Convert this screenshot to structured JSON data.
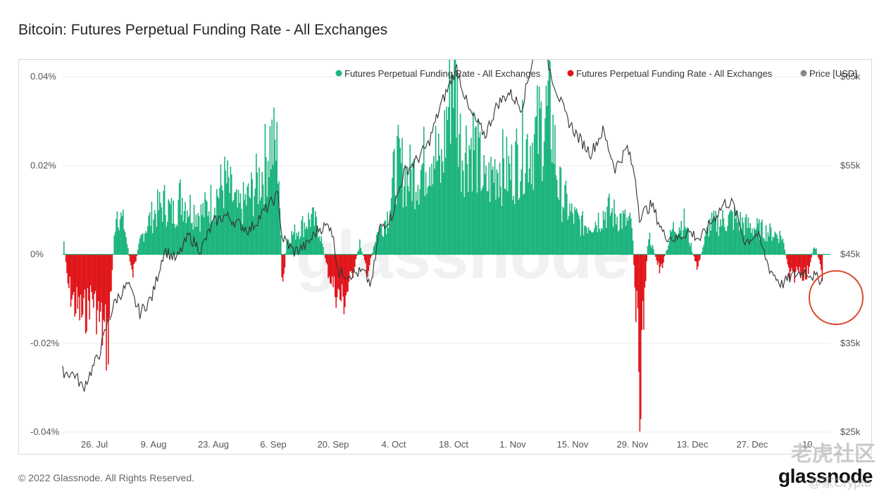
{
  "title": "Bitcoin: Futures Perpetual Funding Rate - All Exchanges",
  "footer": "© 2022 Glassnode. All Rights Reserved.",
  "brand": "glassnode",
  "background_watermark": "glassnode",
  "overlay_watermark": {
    "text": "老虎社区",
    "sub": "@家Crypto"
  },
  "colors": {
    "positive": "#1fb57f",
    "negative": "#e0161b",
    "price": "#333333",
    "highlight_circle": "#d9472b",
    "grid": "#ebebeb"
  },
  "chart_data": {
    "type": "bar",
    "grid": true,
    "legend_position": "top-right",
    "left_axis": {
      "ticks": [
        "0.04%",
        "0.02%",
        "0%",
        "-0.02%",
        "-0.04%"
      ],
      "range": [
        -0.04,
        0.04
      ],
      "unit": "%"
    },
    "right_axis": {
      "ticks": [
        "$65k",
        "$55k",
        "$45k",
        "$35k",
        "$25k"
      ],
      "range": [
        25000,
        65000
      ]
    },
    "x_ticks": [
      "26. Jul",
      "9. Aug",
      "23. Aug",
      "6. Sep",
      "20. Sep",
      "4. Oct",
      "18. Oct",
      "1. Nov",
      "15. Nov",
      "29. Nov",
      "13. Dec",
      "27. Dec",
      "10."
    ],
    "x_range": [
      "2021-07-15",
      "2022-01-20"
    ],
    "series": [
      {
        "name": "Futures Perpetual Funding Rate - All Exchanges",
        "color": "#1fb57f",
        "kind": "positive bars"
      },
      {
        "name": "Futures Perpetual Funding Rate - All Exchanges",
        "color": "#e0161b",
        "kind": "negative bars"
      },
      {
        "name": "Price [USD]",
        "color": "#888888",
        "kind": "line"
      }
    ],
    "funding_rate_points": [
      [
        "2021-07-15",
        0.006
      ],
      [
        "2021-07-16",
        -0.008
      ],
      [
        "2021-07-18",
        -0.014
      ],
      [
        "2021-07-20",
        -0.017
      ],
      [
        "2021-07-22",
        -0.011
      ],
      [
        "2021-07-24",
        -0.018
      ],
      [
        "2021-07-26",
        -0.024
      ],
      [
        "2021-07-27",
        -0.006
      ],
      [
        "2021-07-28",
        0.013
      ],
      [
        "2021-07-30",
        0.008
      ],
      [
        "2021-08-01",
        -0.006
      ],
      [
        "2021-08-03",
        0.004
      ],
      [
        "2021-08-05",
        0.009
      ],
      [
        "2021-08-07",
        0.012
      ],
      [
        "2021-08-09",
        0.014
      ],
      [
        "2021-08-11",
        0.011
      ],
      [
        "2021-08-13",
        0.016
      ],
      [
        "2021-08-15",
        0.013
      ],
      [
        "2021-08-18",
        0.011
      ],
      [
        "2021-08-21",
        0.015
      ],
      [
        "2021-08-24",
        0.02
      ],
      [
        "2021-08-27",
        0.012
      ],
      [
        "2021-08-30",
        0.016
      ],
      [
        "2021-09-02",
        0.022
      ],
      [
        "2021-09-04",
        0.031
      ],
      [
        "2021-09-06",
        0.027
      ],
      [
        "2021-09-07",
        -0.013
      ],
      [
        "2021-09-08",
        0.004
      ],
      [
        "2021-09-11",
        0.007
      ],
      [
        "2021-09-14",
        0.01
      ],
      [
        "2021-09-16",
        0.007
      ],
      [
        "2021-09-18",
        -0.004
      ],
      [
        "2021-09-20",
        -0.01
      ],
      [
        "2021-09-22",
        -0.013
      ],
      [
        "2021-09-24",
        -0.006
      ],
      [
        "2021-09-26",
        0.003
      ],
      [
        "2021-09-28",
        -0.005
      ],
      [
        "2021-09-30",
        0.005
      ],
      [
        "2021-10-03",
        0.011
      ],
      [
        "2021-10-05",
        0.025
      ],
      [
        "2021-10-08",
        0.021
      ],
      [
        "2021-10-11",
        0.023
      ],
      [
        "2021-10-14",
        0.03
      ],
      [
        "2021-10-16",
        0.022
      ],
      [
        "2021-10-19",
        0.054
      ],
      [
        "2021-10-21",
        0.028
      ],
      [
        "2021-10-24",
        0.031
      ],
      [
        "2021-10-27",
        0.018
      ],
      [
        "2021-10-30",
        0.025
      ],
      [
        "2021-11-02",
        0.022
      ],
      [
        "2021-11-05",
        0.029
      ],
      [
        "2021-11-08",
        0.031
      ],
      [
        "2021-11-10",
        0.036
      ],
      [
        "2021-11-12",
        0.039
      ],
      [
        "2021-11-14",
        0.018
      ],
      [
        "2021-11-17",
        0.011
      ],
      [
        "2021-11-20",
        0.008
      ],
      [
        "2021-11-23",
        0.009
      ],
      [
        "2021-11-26",
        0.012
      ],
      [
        "2021-11-29",
        0.01
      ],
      [
        "2021-12-02",
        0.008
      ],
      [
        "2021-12-04",
        -0.035
      ],
      [
        "2021-12-06",
        0.006
      ],
      [
        "2021-12-09",
        -0.005
      ],
      [
        "2021-12-12",
        0.007
      ],
      [
        "2021-12-15",
        0.009
      ],
      [
        "2021-12-18",
        -0.004
      ],
      [
        "2021-12-21",
        0.008
      ],
      [
        "2021-12-24",
        0.009
      ],
      [
        "2021-12-27",
        0.01
      ],
      [
        "2021-12-30",
        0.008
      ],
      [
        "2022-01-02",
        0.007
      ],
      [
        "2022-01-05",
        0.006
      ],
      [
        "2022-01-08",
        0.005
      ],
      [
        "2022-01-10",
        -0.007
      ],
      [
        "2022-01-12",
        -0.004
      ],
      [
        "2022-01-14",
        -0.006
      ],
      [
        "2022-01-16",
        0.003
      ],
      [
        "2022-01-18",
        -0.006
      ]
    ],
    "price_points": [
      [
        "2021-07-15",
        31800
      ],
      [
        "2021-07-18",
        31500
      ],
      [
        "2021-07-20",
        29900
      ],
      [
        "2021-07-24",
        33800
      ],
      [
        "2021-07-26",
        37200
      ],
      [
        "2021-07-28",
        39800
      ],
      [
        "2021-07-31",
        41600
      ],
      [
        "2021-08-03",
        38400
      ],
      [
        "2021-08-06",
        40200
      ],
      [
        "2021-08-09",
        45500
      ],
      [
        "2021-08-12",
        44400
      ],
      [
        "2021-08-15",
        47100
      ],
      [
        "2021-08-18",
        45500
      ],
      [
        "2021-08-21",
        48500
      ],
      [
        "2021-08-24",
        49400
      ],
      [
        "2021-08-27",
        48500
      ],
      [
        "2021-08-30",
        47700
      ],
      [
        "2021-09-02",
        49500
      ],
      [
        "2021-09-06",
        51700
      ],
      [
        "2021-09-07",
        46900
      ],
      [
        "2021-09-10",
        45300
      ],
      [
        "2021-09-13",
        46000
      ],
      [
        "2021-09-16",
        47900
      ],
      [
        "2021-09-19",
        48300
      ],
      [
        "2021-09-21",
        42900
      ],
      [
        "2021-09-24",
        42800
      ],
      [
        "2021-09-27",
        43000
      ],
      [
        "2021-09-29",
        41500
      ],
      [
        "2021-10-01",
        47900
      ],
      [
        "2021-10-04",
        49300
      ],
      [
        "2021-10-07",
        54200
      ],
      [
        "2021-10-10",
        55500
      ],
      [
        "2021-10-13",
        57400
      ],
      [
        "2021-10-16",
        61700
      ],
      [
        "2021-10-20",
        66000
      ],
      [
        "2021-10-23",
        61200
      ],
      [
        "2021-10-27",
        58400
      ],
      [
        "2021-10-30",
        61900
      ],
      [
        "2021-11-02",
        63200
      ],
      [
        "2021-11-05",
        61500
      ],
      [
        "2021-11-08",
        67600
      ],
      [
        "2021-11-10",
        68800
      ],
      [
        "2021-11-13",
        64200
      ],
      [
        "2021-11-16",
        60400
      ],
      [
        "2021-11-19",
        58100
      ],
      [
        "2021-11-22",
        56400
      ],
      [
        "2021-11-25",
        58900
      ],
      [
        "2021-11-28",
        54700
      ],
      [
        "2021-12-01",
        57000
      ],
      [
        "2021-12-03",
        53600
      ],
      [
        "2021-12-04",
        49300
      ],
      [
        "2021-12-07",
        50600
      ],
      [
        "2021-12-10",
        47200
      ],
      [
        "2021-12-13",
        46700
      ],
      [
        "2021-12-16",
        47600
      ],
      [
        "2021-12-19",
        46700
      ],
      [
        "2021-12-22",
        48900
      ],
      [
        "2021-12-25",
        50800
      ],
      [
        "2021-12-27",
        50700
      ],
      [
        "2021-12-30",
        46400
      ],
      [
        "2022-01-02",
        47300
      ],
      [
        "2022-01-05",
        43400
      ],
      [
        "2022-01-08",
        41600
      ],
      [
        "2022-01-11",
        42700
      ],
      [
        "2022-01-14",
        43100
      ],
      [
        "2022-01-17",
        42200
      ],
      [
        "2022-01-18",
        42400
      ]
    ]
  }
}
